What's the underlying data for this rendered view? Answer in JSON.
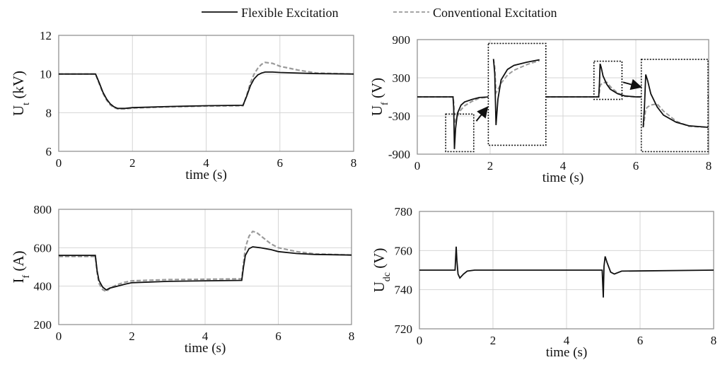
{
  "legend": {
    "flexible": "Flexible Excitation",
    "conventional": "Conventional Excitation"
  },
  "colors": {
    "flexible": "#111111",
    "conventional": "#9a9a9a",
    "grid": "#d6d6d6",
    "frame": "#8a8a8a"
  },
  "chart_data": [
    {
      "id": "ut",
      "type": "line",
      "ylabel": "Ut (kV)",
      "ylabel_main": "U",
      "ylabel_sub": "t",
      "ylabel_unit": " (kV)",
      "xlabel": "time (s)",
      "xlim": [
        0,
        8
      ],
      "ylim": [
        6,
        12
      ],
      "xticks": [
        0,
        2,
        4,
        6,
        8
      ],
      "yticks": [
        6,
        8,
        10,
        12
      ],
      "grid": true,
      "series": [
        {
          "name": "Flexible Excitation",
          "style": "solid",
          "x": [
            0,
            1.0,
            1.1,
            1.2,
            1.3,
            1.4,
            1.5,
            1.6,
            1.8,
            2.0,
            3.0,
            4.0,
            5.0,
            5.1,
            5.2,
            5.3,
            5.4,
            5.5,
            5.6,
            5.8,
            6.0,
            7.0,
            8.0
          ],
          "y": [
            10,
            10,
            9.55,
            9.05,
            8.7,
            8.45,
            8.3,
            8.22,
            8.22,
            8.26,
            8.32,
            8.36,
            8.38,
            8.85,
            9.4,
            9.75,
            9.95,
            10.05,
            10.1,
            10.1,
            10.08,
            10.02,
            10.0
          ]
        },
        {
          "name": "Conventional Excitation",
          "style": "dashed",
          "x": [
            0,
            1.0,
            1.1,
            1.2,
            1.3,
            1.4,
            1.5,
            1.6,
            1.8,
            2.0,
            3.0,
            4.0,
            5.0,
            5.1,
            5.2,
            5.3,
            5.4,
            5.5,
            5.6,
            5.8,
            6.0,
            6.5,
            7.0,
            8.0
          ],
          "y": [
            10,
            10,
            9.5,
            9.0,
            8.65,
            8.4,
            8.26,
            8.2,
            8.2,
            8.24,
            8.3,
            8.34,
            8.36,
            8.9,
            9.55,
            10.0,
            10.3,
            10.5,
            10.6,
            10.55,
            10.4,
            10.2,
            10.05,
            10.0
          ]
        }
      ]
    },
    {
      "id": "uf",
      "type": "line",
      "ylabel": "Uf (V)",
      "ylabel_main": "U",
      "ylabel_sub": "f",
      "ylabel_unit": " (V)",
      "xlabel": "time (s)",
      "xlim": [
        0,
        8
      ],
      "ylim": [
        -900,
        900
      ],
      "xticks": [
        0,
        2,
        4,
        6,
        8
      ],
      "yticks": [
        -900,
        -300,
        300,
        900
      ],
      "grid": true,
      "insets": [
        "zoom near t = 1 s",
        "zoom near t = 5 s"
      ],
      "series": [
        {
          "name": "Flexible Excitation",
          "style": "solid",
          "x": [
            0,
            0.98,
            1.0,
            1.02,
            1.05,
            1.1,
            1.2,
            1.3,
            1.5,
            1.7,
            2.0,
            3.0,
            4.0,
            4.98,
            5.0,
            5.02,
            5.05,
            5.1,
            5.2,
            5.3,
            5.5,
            5.7,
            6.0,
            7.0,
            8.0
          ],
          "y": [
            0,
            0,
            -180,
            -820,
            -500,
            -260,
            -130,
            -80,
            -40,
            -10,
            0,
            0,
            0,
            0,
            200,
            520,
            460,
            330,
            200,
            120,
            50,
            15,
            0,
            0,
            0
          ]
        },
        {
          "name": "Conventional Excitation",
          "style": "dashed",
          "x": [
            0,
            0.98,
            1.0,
            1.02,
            1.05,
            1.1,
            1.2,
            1.3,
            1.5,
            1.7,
            2.0,
            3.0,
            4.0,
            4.98,
            5.0,
            5.02,
            5.05,
            5.1,
            5.2,
            5.3,
            5.5,
            5.7,
            6.0,
            7.0,
            8.0
          ],
          "y": [
            0,
            0,
            -100,
            -420,
            -380,
            -300,
            -200,
            -140,
            -70,
            -20,
            0,
            0,
            0,
            0,
            80,
            180,
            200,
            220,
            230,
            160,
            60,
            10,
            0,
            0,
            0
          ]
        }
      ]
    },
    {
      "id": "if",
      "type": "line",
      "ylabel": "If (A)",
      "ylabel_main": "I",
      "ylabel_sub": "f",
      "ylabel_unit": " (A)",
      "xlabel": "time (s)",
      "xlim": [
        0,
        8
      ],
      "ylim": [
        200,
        800
      ],
      "xticks": [
        0,
        2,
        4,
        6,
        8
      ],
      "yticks": [
        200,
        400,
        600,
        800
      ],
      "grid": true,
      "series": [
        {
          "name": "Flexible Excitation",
          "style": "solid",
          "x": [
            0,
            1.0,
            1.05,
            1.1,
            1.2,
            1.3,
            1.4,
            1.6,
            1.8,
            2.0,
            3.0,
            4.0,
            5.0,
            5.05,
            5.1,
            5.2,
            5.3,
            5.5,
            5.8,
            6.0,
            6.5,
            7.0,
            8.0
          ],
          "y": [
            560,
            560,
            480,
            430,
            395,
            380,
            390,
            400,
            410,
            418,
            425,
            428,
            430,
            500,
            560,
            595,
            605,
            600,
            590,
            580,
            570,
            565,
            562
          ]
        },
        {
          "name": "Conventional Excitation",
          "style": "dashed",
          "x": [
            0,
            1.0,
            1.05,
            1.1,
            1.2,
            1.3,
            1.4,
            1.6,
            1.8,
            2.0,
            3.0,
            4.0,
            5.0,
            5.05,
            5.1,
            5.2,
            5.3,
            5.4,
            5.6,
            5.8,
            6.0,
            6.5,
            7.0,
            8.0
          ],
          "y": [
            555,
            555,
            470,
            415,
            382,
            372,
            390,
            408,
            420,
            428,
            434,
            436,
            438,
            520,
            600,
            660,
            685,
            680,
            650,
            620,
            600,
            580,
            568,
            562
          ]
        }
      ]
    },
    {
      "id": "udc",
      "type": "line",
      "ylabel": "Udc (V)",
      "ylabel_main": "U",
      "ylabel_sub": "dc",
      "ylabel_unit": " (V)",
      "xlabel": "time (s)",
      "xlim": [
        0,
        8
      ],
      "ylim": [
        720,
        780
      ],
      "xticks": [
        0,
        2,
        4,
        6,
        8
      ],
      "yticks": [
        720,
        740,
        760,
        780
      ],
      "grid": true,
      "series": [
        {
          "name": "Flexible Excitation",
          "style": "solid",
          "x": [
            0,
            0.97,
            1.0,
            1.02,
            1.05,
            1.1,
            1.2,
            1.3,
            1.5,
            4.97,
            5.0,
            5.02,
            5.05,
            5.1,
            5.2,
            5.3,
            5.5,
            8.0
          ],
          "y": [
            750,
            750,
            762,
            755,
            748,
            746,
            748,
            749.5,
            750,
            750,
            736,
            752,
            757,
            754,
            749,
            748,
            749.5,
            750
          ]
        }
      ]
    }
  ]
}
